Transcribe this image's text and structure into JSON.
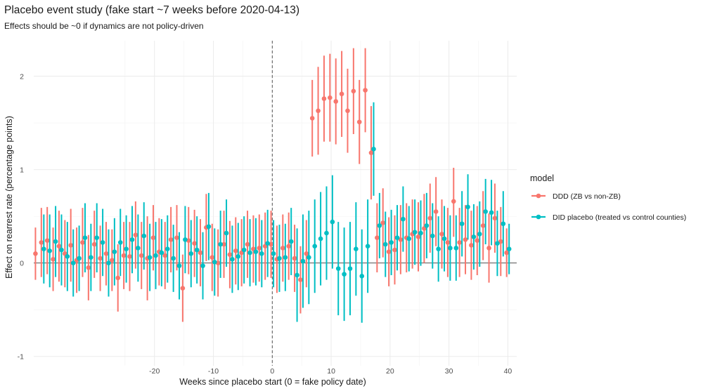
{
  "chart_data": {
    "type": "scatter",
    "title": "Placebo event study (fake start ~7 weeks before 2020-04-13)",
    "subtitle": "Effects should be ~0 if dynamics are not policy-driven",
    "xlabel": "Weeks since placebo start (0 = fake policy date)",
    "ylabel": "Effect on rearrest rate (percentage points)",
    "xlim": [
      -40.5,
      41.5
    ],
    "ylim": [
      -1.1,
      2.38
    ],
    "x_ticks": [
      -20,
      -10,
      0,
      10,
      20,
      30,
      40
    ],
    "x_tick_labels": [
      "-20",
      "-10",
      "0",
      "10",
      "20",
      "30",
      "40"
    ],
    "y_ticks": [
      -1,
      0,
      1,
      2
    ],
    "y_tick_labels": [
      "-1",
      "0",
      "1",
      "2"
    ],
    "reference_line_y": 0,
    "reference_line_x": 0,
    "grid": true,
    "legend_title": "model",
    "legend_position": "right",
    "series": [
      {
        "name": "DDD (ZB vs non-ZB)",
        "color": "#F8766D",
        "points": [
          {
            "x": -40,
            "y": 0.1,
            "lo": -0.18,
            "hi": 0.38
          },
          {
            "x": -39,
            "y": 0.22,
            "lo": -0.15,
            "hi": 0.59
          },
          {
            "x": -38,
            "y": 0.24,
            "lo": -0.12,
            "hi": 0.6
          },
          {
            "x": -37,
            "y": 0.04,
            "lo": -0.3,
            "hi": 0.38
          },
          {
            "x": -36,
            "y": 0.18,
            "lo": -0.2,
            "hi": 0.56
          },
          {
            "x": -35,
            "y": 0.1,
            "lo": -0.26,
            "hi": 0.46
          },
          {
            "x": -34,
            "y": 0.19,
            "lo": -0.2,
            "hi": 0.58
          },
          {
            "x": -33,
            "y": 0.03,
            "lo": -0.32,
            "hi": 0.38
          },
          {
            "x": -32,
            "y": 0.22,
            "lo": -0.15,
            "hi": 0.59
          },
          {
            "x": -31,
            "y": -0.05,
            "lo": -0.4,
            "hi": 0.3
          },
          {
            "x": -30,
            "y": 0.2,
            "lo": -0.16,
            "hi": 0.56
          },
          {
            "x": -29,
            "y": 0.05,
            "lo": -0.3,
            "hi": 0.4
          },
          {
            "x": -28,
            "y": 0.1,
            "lo": -0.24,
            "hi": 0.44
          },
          {
            "x": -27,
            "y": 0.03,
            "lo": -0.3,
            "hi": 0.36
          },
          {
            "x": -26,
            "y": -0.16,
            "lo": -0.52,
            "hi": 0.2
          },
          {
            "x": -25,
            "y": 0.08,
            "lo": -0.28,
            "hi": 0.44
          },
          {
            "x": -24,
            "y": 0.07,
            "lo": -0.3,
            "hi": 0.44
          },
          {
            "x": -23,
            "y": 0.3,
            "lo": -0.06,
            "hi": 0.66
          },
          {
            "x": -22,
            "y": 0.08,
            "lo": -0.28,
            "hi": 0.44
          },
          {
            "x": -21,
            "y": 0.05,
            "lo": -0.4,
            "hi": 0.5
          },
          {
            "x": -20,
            "y": 0.27,
            "lo": -0.08,
            "hi": 0.62
          },
          {
            "x": -19,
            "y": 0.12,
            "lo": -0.24,
            "hi": 0.48
          },
          {
            "x": -18,
            "y": 0.08,
            "lo": -0.28,
            "hi": 0.44
          },
          {
            "x": -17,
            "y": 0.25,
            "lo": -0.1,
            "hi": 0.6
          },
          {
            "x": -16,
            "y": 0.27,
            "lo": -0.08,
            "hi": 0.62
          },
          {
            "x": -15,
            "y": -0.27,
            "lo": -0.63,
            "hi": 0.09
          },
          {
            "x": -14,
            "y": 0.24,
            "lo": -0.12,
            "hi": 0.6
          },
          {
            "x": -13,
            "y": 0.21,
            "lo": -0.15,
            "hi": 0.57
          },
          {
            "x": -12,
            "y": 0.11,
            "lo": -0.25,
            "hi": 0.47
          },
          {
            "x": -11,
            "y": 0.38,
            "lo": 0.02,
            "hi": 0.74
          },
          {
            "x": -10,
            "y": 0.06,
            "lo": -0.3,
            "hi": 0.42
          },
          {
            "x": -9,
            "y": 0.0,
            "lo": -0.36,
            "hi": 0.36
          },
          {
            "x": -8,
            "y": 0.2,
            "lo": -0.16,
            "hi": 0.56
          },
          {
            "x": -7,
            "y": 0.09,
            "lo": -0.27,
            "hi": 0.45
          },
          {
            "x": -6,
            "y": 0.13,
            "lo": -0.23,
            "hi": 0.49
          },
          {
            "x": -5,
            "y": 0.11,
            "lo": -0.25,
            "hi": 0.47
          },
          {
            "x": -4,
            "y": 0.2,
            "lo": -0.16,
            "hi": 0.56
          },
          {
            "x": -3,
            "y": 0.15,
            "lo": -0.21,
            "hi": 0.51
          },
          {
            "x": -2,
            "y": 0.16,
            "lo": -0.2,
            "hi": 0.52
          },
          {
            "x": -1,
            "y": 0.18,
            "lo": -0.18,
            "hi": 0.54
          },
          {
            "x": 0,
            "y": 0.2,
            "lo": -0.16,
            "hi": 0.56
          },
          {
            "x": 1,
            "y": 0.04,
            "lo": -0.32,
            "hi": 0.4
          },
          {
            "x": 2,
            "y": 0.16,
            "lo": -0.2,
            "hi": 0.52
          },
          {
            "x": 3,
            "y": 0.18,
            "lo": -0.18,
            "hi": 0.54
          },
          {
            "x": 4,
            "y": 0.05,
            "lo": -0.31,
            "hi": 0.41
          },
          {
            "x": 5,
            "y": -0.18,
            "lo": -0.54,
            "hi": 0.18
          },
          {
            "x": 6,
            "y": 0.1,
            "lo": -0.26,
            "hi": 0.46
          },
          {
            "x": 7,
            "y": 1.55,
            "lo": 1.14,
            "hi": 1.96
          },
          {
            "x": 8,
            "y": 1.63,
            "lo": 1.16,
            "hi": 2.1
          },
          {
            "x": 9,
            "y": 1.76,
            "lo": 1.3,
            "hi": 2.22
          },
          {
            "x": 10,
            "y": 1.77,
            "lo": 1.3,
            "hi": 2.24
          },
          {
            "x": 11,
            "y": 1.73,
            "lo": 1.27,
            "hi": 2.19
          },
          {
            "x": 12,
            "y": 1.81,
            "lo": 1.35,
            "hi": 2.27
          },
          {
            "x": 13,
            "y": 1.63,
            "lo": 1.18,
            "hi": 2.08
          },
          {
            "x": 14,
            "y": 1.84,
            "lo": 1.38,
            "hi": 2.3
          },
          {
            "x": 15,
            "y": 1.51,
            "lo": 1.06,
            "hi": 1.96
          },
          {
            "x": 16,
            "y": 1.85,
            "lo": 1.4,
            "hi": 2.3
          },
          {
            "x": 17,
            "y": 1.18,
            "lo": 0.68,
            "hi": 1.68
          },
          {
            "x": 18,
            "y": 0.27,
            "lo": -0.1,
            "hi": 0.64
          },
          {
            "x": 19,
            "y": 0.43,
            "lo": 0.06,
            "hi": 0.8
          },
          {
            "x": 20,
            "y": 0.12,
            "lo": -0.25,
            "hi": 0.49
          },
          {
            "x": 21,
            "y": 0.14,
            "lo": -0.23,
            "hi": 0.51
          },
          {
            "x": 22,
            "y": 0.25,
            "lo": -0.12,
            "hi": 0.62
          },
          {
            "x": 23,
            "y": 0.27,
            "lo": -0.1,
            "hi": 0.64
          },
          {
            "x": 24,
            "y": 0.31,
            "lo": -0.06,
            "hi": 0.68
          },
          {
            "x": 25,
            "y": 0.28,
            "lo": -0.09,
            "hi": 0.65
          },
          {
            "x": 26,
            "y": 0.37,
            "lo": 0.0,
            "hi": 0.74
          },
          {
            "x": 27,
            "y": 0.48,
            "lo": 0.11,
            "hi": 0.85
          },
          {
            "x": 28,
            "y": 0.55,
            "lo": 0.18,
            "hi": 0.92
          },
          {
            "x": 29,
            "y": 0.31,
            "lo": -0.06,
            "hi": 0.68
          },
          {
            "x": 30,
            "y": 0.22,
            "lo": -0.15,
            "hi": 0.59
          },
          {
            "x": 31,
            "y": 0.66,
            "lo": 0.28,
            "hi": 1.02
          },
          {
            "x": 32,
            "y": 0.22,
            "lo": -0.15,
            "hi": 0.59
          },
          {
            "x": 33,
            "y": 0.25,
            "lo": -0.12,
            "hi": 0.62
          },
          {
            "x": 34,
            "y": 0.19,
            "lo": -0.18,
            "hi": 0.56
          },
          {
            "x": 35,
            "y": 0.24,
            "lo": -0.13,
            "hi": 0.61
          },
          {
            "x": 36,
            "y": 0.4,
            "lo": 0.03,
            "hi": 0.77
          },
          {
            "x": 37,
            "y": 0.16,
            "lo": -0.21,
            "hi": 0.53
          },
          {
            "x": 38,
            "y": 0.48,
            "lo": 0.11,
            "hi": 0.85
          },
          {
            "x": 39,
            "y": 0.23,
            "lo": -0.14,
            "hi": 0.6
          },
          {
            "x": 40,
            "y": 0.11,
            "lo": -0.15,
            "hi": 0.37
          }
        ]
      },
      {
        "name": "DID placebo (treated vs control counties)",
        "color": "#00BFC4",
        "points": [
          {
            "x": -39,
            "y": 0.15,
            "lo": -0.22,
            "hi": 0.52
          },
          {
            "x": -38,
            "y": 0.13,
            "lo": -0.26,
            "hi": 0.52
          },
          {
            "x": -37,
            "y": 0.23,
            "lo": -0.15,
            "hi": 0.61
          },
          {
            "x": -36,
            "y": 0.14,
            "lo": -0.24,
            "hi": 0.52
          },
          {
            "x": -35,
            "y": 0.07,
            "lo": -0.3,
            "hi": 0.44
          },
          {
            "x": -34,
            "y": 0.0,
            "lo": -0.36,
            "hi": 0.36
          },
          {
            "x": -33,
            "y": 0.05,
            "lo": -0.3,
            "hi": 0.4
          },
          {
            "x": -32,
            "y": 0.27,
            "lo": -0.1,
            "hi": 0.64
          },
          {
            "x": -31,
            "y": 0.06,
            "lo": -0.3,
            "hi": 0.42
          },
          {
            "x": -30,
            "y": 0.27,
            "lo": -0.1,
            "hi": 0.64
          },
          {
            "x": -29,
            "y": 0.22,
            "lo": -0.14,
            "hi": 0.58
          },
          {
            "x": -28,
            "y": 0.0,
            "lo": -0.36,
            "hi": 0.36
          },
          {
            "x": -27,
            "y": 0.12,
            "lo": -0.24,
            "hi": 0.48
          },
          {
            "x": -26,
            "y": 0.22,
            "lo": -0.14,
            "hi": 0.58
          },
          {
            "x": -25,
            "y": 0.15,
            "lo": -0.21,
            "hi": 0.51
          },
          {
            "x": -24,
            "y": 0.25,
            "lo": -0.11,
            "hi": 0.61
          },
          {
            "x": -23,
            "y": 0.16,
            "lo": -0.2,
            "hi": 0.52
          },
          {
            "x": -22,
            "y": 0.29,
            "lo": -0.07,
            "hi": 0.65
          },
          {
            "x": -21,
            "y": 0.06,
            "lo": -0.3,
            "hi": 0.42
          },
          {
            "x": -20,
            "y": 0.08,
            "lo": -0.28,
            "hi": 0.44
          },
          {
            "x": -19,
            "y": 0.11,
            "lo": -0.25,
            "hi": 0.47
          },
          {
            "x": -18,
            "y": 0.15,
            "lo": -0.21,
            "hi": 0.51
          },
          {
            "x": -17,
            "y": 0.05,
            "lo": -0.31,
            "hi": 0.41
          },
          {
            "x": -16,
            "y": -0.03,
            "lo": -0.39,
            "hi": 0.33
          },
          {
            "x": -15,
            "y": 0.25,
            "lo": -0.11,
            "hi": 0.61
          },
          {
            "x": -14,
            "y": 0.1,
            "lo": -0.26,
            "hi": 0.46
          },
          {
            "x": -13,
            "y": 0.14,
            "lo": -0.22,
            "hi": 0.5
          },
          {
            "x": -12,
            "y": -0.03,
            "lo": -0.39,
            "hi": 0.33
          },
          {
            "x": -11,
            "y": 0.39,
            "lo": 0.03,
            "hi": 0.75
          },
          {
            "x": -10,
            "y": 0.01,
            "lo": -0.35,
            "hi": 0.37
          },
          {
            "x": -9,
            "y": 0.2,
            "lo": -0.16,
            "hi": 0.56
          },
          {
            "x": -8,
            "y": 0.32,
            "lo": -0.04,
            "hi": 0.68
          },
          {
            "x": -7,
            "y": 0.04,
            "lo": -0.32,
            "hi": 0.4
          },
          {
            "x": -6,
            "y": 0.07,
            "lo": -0.29,
            "hi": 0.43
          },
          {
            "x": -5,
            "y": 0.14,
            "lo": -0.22,
            "hi": 0.5
          },
          {
            "x": -4,
            "y": 0.11,
            "lo": -0.25,
            "hi": 0.47
          },
          {
            "x": -3,
            "y": 0.12,
            "lo": -0.24,
            "hi": 0.48
          },
          {
            "x": -2,
            "y": 0.1,
            "lo": -0.26,
            "hi": 0.46
          },
          {
            "x": -1,
            "y": 0.21,
            "lo": -0.15,
            "hi": 0.57
          },
          {
            "x": 0,
            "y": 0.1,
            "lo": -0.26,
            "hi": 0.46
          },
          {
            "x": 1,
            "y": 0.05,
            "lo": -0.31,
            "hi": 0.41
          },
          {
            "x": 2,
            "y": 0.06,
            "lo": -0.3,
            "hi": 0.42
          },
          {
            "x": 3,
            "y": 0.23,
            "lo": -0.13,
            "hi": 0.59
          },
          {
            "x": 4,
            "y": -0.13,
            "lo": -0.63,
            "hi": 0.37
          },
          {
            "x": 5,
            "y": 0.02,
            "lo": -0.48,
            "hi": 0.52
          },
          {
            "x": 6,
            "y": 0.06,
            "lo": -0.44,
            "hi": 0.56
          },
          {
            "x": 7,
            "y": 0.18,
            "lo": -0.32,
            "hi": 0.68
          },
          {
            "x": 8,
            "y": 0.26,
            "lo": -0.24,
            "hi": 0.76
          },
          {
            "x": 9,
            "y": 0.32,
            "lo": -0.18,
            "hi": 0.82
          },
          {
            "x": 10,
            "y": 0.44,
            "lo": -0.06,
            "hi": 0.94
          },
          {
            "x": 11,
            "y": -0.06,
            "lo": -0.56,
            "hi": 0.44
          },
          {
            "x": 12,
            "y": -0.12,
            "lo": -0.62,
            "hi": 0.38
          },
          {
            "x": 13,
            "y": -0.06,
            "lo": -0.56,
            "hi": 0.44
          },
          {
            "x": 14,
            "y": 0.15,
            "lo": -0.35,
            "hi": 0.65
          },
          {
            "x": 15,
            "y": -0.14,
            "lo": -0.64,
            "hi": 0.36
          },
          {
            "x": 16,
            "y": 0.18,
            "lo": -0.32,
            "hi": 0.68
          },
          {
            "x": 17,
            "y": 1.22,
            "lo": 0.72,
            "hi": 1.72
          },
          {
            "x": 18,
            "y": 0.4,
            "lo": 0.05,
            "hi": 0.75
          },
          {
            "x": 19,
            "y": 0.2,
            "lo": -0.15,
            "hi": 0.55
          },
          {
            "x": 20,
            "y": 0.22,
            "lo": -0.13,
            "hi": 0.57
          },
          {
            "x": 21,
            "y": 0.27,
            "lo": -0.08,
            "hi": 0.62
          },
          {
            "x": 22,
            "y": 0.47,
            "lo": 0.12,
            "hi": 0.82
          },
          {
            "x": 23,
            "y": 0.26,
            "lo": -0.09,
            "hi": 0.61
          },
          {
            "x": 24,
            "y": 0.33,
            "lo": -0.02,
            "hi": 0.68
          },
          {
            "x": 25,
            "y": 0.32,
            "lo": -0.03,
            "hi": 0.67
          },
          {
            "x": 26,
            "y": 0.4,
            "lo": 0.05,
            "hi": 0.75
          },
          {
            "x": 27,
            "y": 0.29,
            "lo": -0.06,
            "hi": 0.64
          },
          {
            "x": 28,
            "y": 0.15,
            "lo": -0.2,
            "hi": 0.5
          },
          {
            "x": 29,
            "y": 0.26,
            "lo": -0.09,
            "hi": 0.61
          },
          {
            "x": 30,
            "y": 0.16,
            "lo": -0.19,
            "hi": 0.51
          },
          {
            "x": 31,
            "y": 0.16,
            "lo": -0.19,
            "hi": 0.51
          },
          {
            "x": 32,
            "y": 0.42,
            "lo": 0.07,
            "hi": 0.77
          },
          {
            "x": 33,
            "y": 0.6,
            "lo": 0.25,
            "hi": 0.95
          },
          {
            "x": 34,
            "y": 0.28,
            "lo": -0.07,
            "hi": 0.63
          },
          {
            "x": 35,
            "y": 0.31,
            "lo": -0.04,
            "hi": 0.66
          },
          {
            "x": 36,
            "y": 0.55,
            "lo": 0.2,
            "hi": 0.9
          },
          {
            "x": 37,
            "y": 0.54,
            "lo": 0.19,
            "hi": 0.89
          },
          {
            "x": 38,
            "y": 0.21,
            "lo": -0.14,
            "hi": 0.56
          },
          {
            "x": 39,
            "y": 0.42,
            "lo": 0.07,
            "hi": 0.77
          },
          {
            "x": 40,
            "y": 0.15,
            "lo": -0.12,
            "hi": 0.42
          }
        ]
      }
    ]
  }
}
